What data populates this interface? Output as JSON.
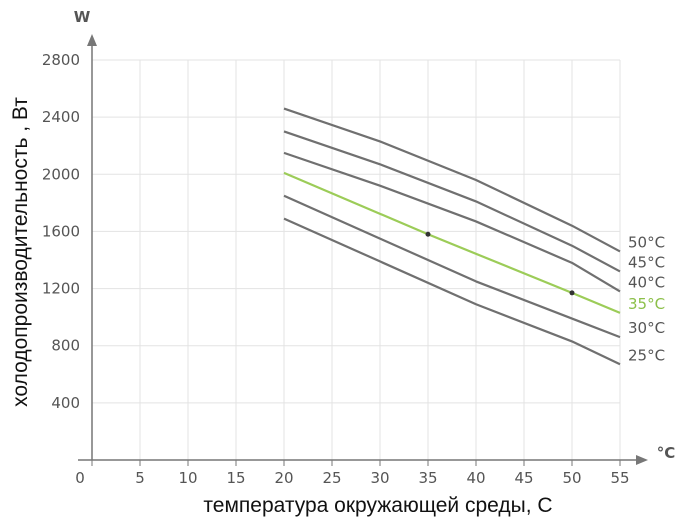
{
  "chart_data": {
    "type": "line",
    "title": "",
    "xlabel": "температура окружающей среды, С",
    "ylabel": "холодопроизводительность , Вт",
    "x_unit": "°C",
    "y_unit": "W",
    "xlim": [
      0,
      55
    ],
    "ylim": [
      0,
      2800
    ],
    "x_ticks": [
      0,
      5,
      10,
      15,
      20,
      25,
      30,
      35,
      40,
      45,
      50,
      55
    ],
    "y_ticks": [
      400,
      800,
      1200,
      1600,
      2000,
      2400,
      2800
    ],
    "grid": true,
    "legend": "inline-right",
    "series": [
      {
        "name": "50°C",
        "color": "#707070",
        "x": [
          20,
          30,
          40,
          50,
          55
        ],
        "y": [
          2460,
          2230,
          1960,
          1640,
          1460
        ]
      },
      {
        "name": "45°C",
        "color": "#707070",
        "x": [
          20,
          30,
          40,
          50,
          55
        ],
        "y": [
          2300,
          2070,
          1810,
          1500,
          1320
        ]
      },
      {
        "name": "40°C",
        "color": "#707070",
        "x": [
          20,
          30,
          40,
          50,
          55
        ],
        "y": [
          2150,
          1920,
          1670,
          1380,
          1180
        ]
      },
      {
        "name": "35°C",
        "color": "#9ccc58",
        "x": [
          20,
          35,
          50,
          55
        ],
        "y": [
          2010,
          1580,
          1170,
          1030
        ]
      },
      {
        "name": "30°C",
        "color": "#707070",
        "x": [
          20,
          30,
          40,
          50,
          55
        ],
        "y": [
          1850,
          1550,
          1250,
          990,
          860
        ]
      },
      {
        "name": "25°C",
        "color": "#707070",
        "x": [
          20,
          30,
          40,
          50,
          55
        ],
        "y": [
          1690,
          1390,
          1090,
          830,
          670
        ]
      }
    ],
    "markers": [
      {
        "series": "35°C",
        "x": 35,
        "y": 1580
      },
      {
        "series": "35°C",
        "x": 50,
        "y": 1170
      }
    ]
  }
}
